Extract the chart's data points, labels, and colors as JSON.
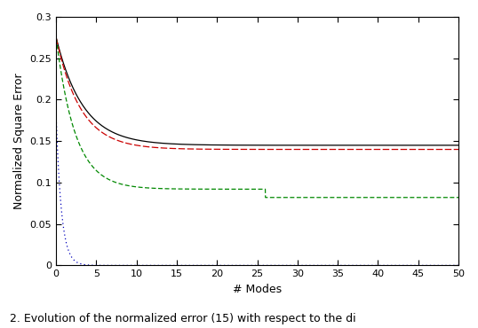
{
  "title": "",
  "xlabel": "# Modes",
  "ylabel": "Normalized Square Error",
  "xlim": [
    0,
    50
  ],
  "ylim": [
    0,
    0.3
  ],
  "xticks": [
    0,
    5,
    10,
    15,
    20,
    25,
    30,
    35,
    40,
    45,
    50
  ],
  "yticks": [
    0,
    0.05,
    0.1,
    0.15,
    0.2,
    0.25,
    0.3
  ],
  "caption": "2. Evolution of the normalized error (15) with respect to the di",
  "black_line_color": "#000000",
  "red_line_color": "#cc0000",
  "green_line_color": "#008800",
  "blue_line_color": "#0000bb",
  "figsize": [
    5.38,
    3.7
  ],
  "dpi": 100
}
